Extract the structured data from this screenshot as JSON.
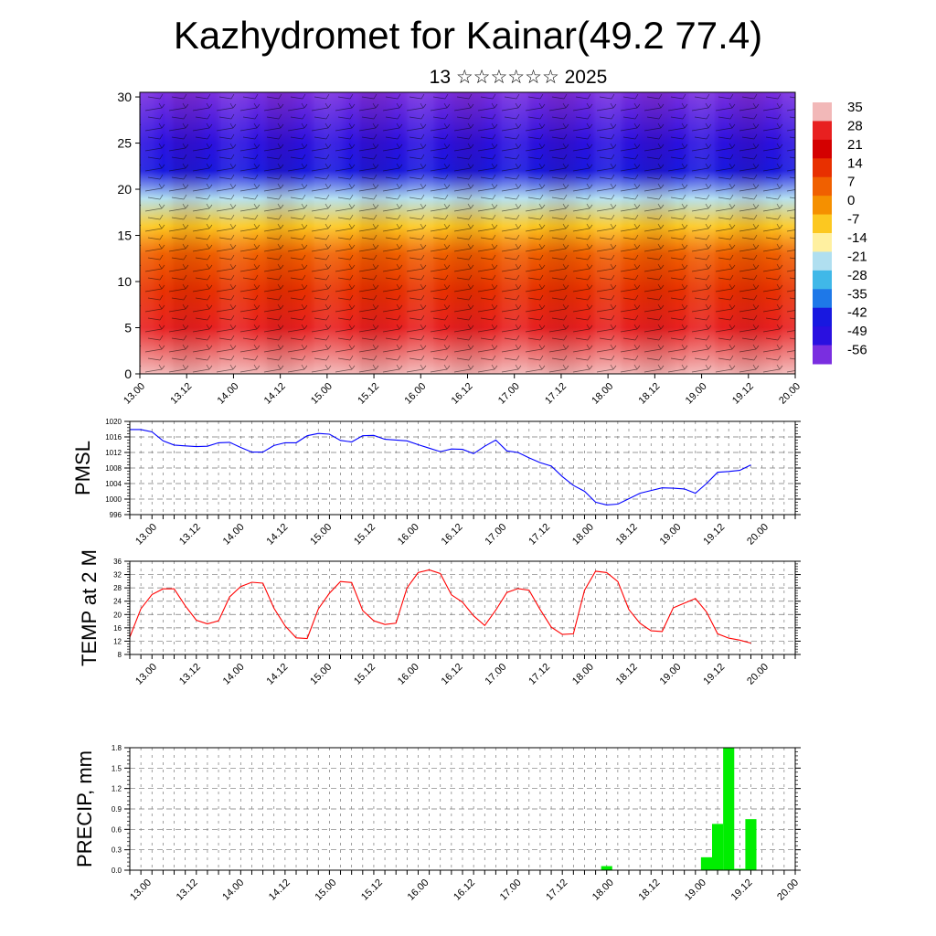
{
  "title": "Kazhydromet for Kainar(49.2 77.4)",
  "subtitle": "13 ☆☆☆☆☆☆ 2025",
  "chart_data": [
    {
      "type": "heatmap",
      "name": "cross-section",
      "x_ticks": [
        "13.00",
        "13.12",
        "14.00",
        "14.12",
        "15.00",
        "15.12",
        "16.00",
        "16.12",
        "17.00",
        "17.12",
        "18.00",
        "18.12",
        "19.00",
        "19.12",
        "20.00"
      ],
      "y_ticks": [
        0,
        5,
        10,
        15,
        20,
        25,
        30
      ],
      "ylim": [
        0,
        30.5
      ],
      "colorbar": {
        "labels": [
          "35",
          "28",
          "21",
          "14",
          "7",
          "0",
          "-7",
          "-14",
          "-21",
          "-28",
          "-35",
          "-42",
          "-49",
          "-56"
        ],
        "colors": [
          "#f2b8b8",
          "#e82020",
          "#d40000",
          "#e83000",
          "#f06000",
          "#f59000",
          "#fcc820",
          "#fff0a0",
          "#b0dff0",
          "#40b8e8",
          "#1e78e8",
          "#1818e0",
          "#2a10e0",
          "#7a2ee0"
        ]
      },
      "temperature_profile": [
        {
          "height": 0,
          "value": 33
        },
        {
          "height": 5,
          "value": 25
        },
        {
          "height": 9,
          "value": 14
        },
        {
          "height": 13,
          "value": 5
        },
        {
          "height": 16,
          "value": -10
        },
        {
          "height": 19,
          "value": -24
        },
        {
          "height": 22,
          "value": -40
        },
        {
          "height": 25,
          "value": -52
        },
        {
          "height": 30.5,
          "value": -56
        }
      ]
    },
    {
      "type": "line",
      "ylabel": "PMSL",
      "x_ticks": [
        "13.00",
        "13.12",
        "14.00",
        "14.12",
        "15.00",
        "15.12",
        "16.00",
        "16.12",
        "17.00",
        "17.12",
        "18.00",
        "18.12",
        "19.00",
        "19.12",
        "20.00"
      ],
      "y_ticks": [
        996,
        1000,
        1004,
        1008,
        1012,
        1016,
        1020
      ],
      "ylim": [
        996,
        1020
      ],
      "color": "#0000ff",
      "series": [
        {
          "values": [
            1017.9,
            1017.9,
            1017.3,
            1015,
            1013.9,
            1013.7,
            1013.5,
            1013.6,
            1014.5,
            1014.6,
            1013.3,
            1012.1,
            1012.1,
            1013.8,
            1014.5,
            1014.5,
            1016.3,
            1016.9,
            1016.7,
            1015.1,
            1014.7,
            1016.3,
            1016.4,
            1015.4,
            1015.2,
            1015,
            1014,
            1013.1,
            1012.2,
            1012.9,
            1012.8,
            1011.7,
            1013.6,
            1015.2,
            1012.4,
            1012,
            1010.6,
            1009.4,
            1008.5,
            1005.8,
            1003.5,
            1002,
            999.2,
            998.5,
            998.7,
            1000.1,
            1001.5,
            1002.2,
            1002.9,
            1002.8,
            1002.6,
            1001.5,
            1004,
            1006.9,
            1007.1,
            1007.4,
            1008.8
          ]
        }
      ]
    },
    {
      "type": "line",
      "ylabel": "TEMP at 2 M",
      "x_ticks": [
        "13.00",
        "13.12",
        "14.00",
        "14.12",
        "15.00",
        "15.12",
        "16.00",
        "16.12",
        "17.00",
        "17.12",
        "18.00",
        "18.12",
        "19.00",
        "19.12",
        "20.00"
      ],
      "y_ticks": [
        8,
        12,
        16,
        20,
        24,
        28,
        32,
        36
      ],
      "ylim": [
        8,
        36
      ],
      "color": "#ff0000",
      "series": [
        {
          "values": [
            13.2,
            21.7,
            26,
            27.7,
            27.7,
            22.6,
            18.3,
            17.2,
            18.1,
            25.3,
            28.4,
            29.7,
            29.4,
            21.9,
            16.6,
            13,
            12.8,
            21.7,
            26.4,
            29.9,
            29.6,
            21.2,
            18.1,
            17,
            17.4,
            28,
            32.6,
            33.4,
            32.3,
            25.9,
            23.7,
            19.6,
            16.7,
            21.3,
            26.6,
            27.8,
            27.3,
            21.5,
            16.2,
            14,
            14.2,
            27.3,
            33,
            32.6,
            29.9,
            21.5,
            17.4,
            15.1,
            14.9,
            22,
            23.4,
            24.8,
            20.8,
            14.2,
            12.9,
            12.3,
            11.4
          ]
        }
      ]
    },
    {
      "type": "bar",
      "ylabel": "PRECIP, mm",
      "x_ticks": [
        "13.00",
        "13.12",
        "14.00",
        "14.12",
        "15.00",
        "15.12",
        "16.00",
        "16.12",
        "17.00",
        "17.12",
        "18.00",
        "18.12",
        "19.00",
        "19.12",
        "20.00"
      ],
      "y_ticks": [
        "0.0",
        "0.3",
        "0.6",
        "0.9",
        "1.2",
        "1.5",
        "1.8"
      ],
      "ylim": [
        0,
        1.8
      ],
      "color": "#00ee00",
      "bars": [
        {
          "x": 43,
          "value": 0.06
        },
        {
          "x": 52,
          "value": 0.19
        },
        {
          "x": 53,
          "value": 0.68
        },
        {
          "x": 54,
          "value": 1.8
        },
        {
          "x": 55,
          "value": 0.02
        },
        {
          "x": 56,
          "value": 0.75
        }
      ]
    }
  ]
}
